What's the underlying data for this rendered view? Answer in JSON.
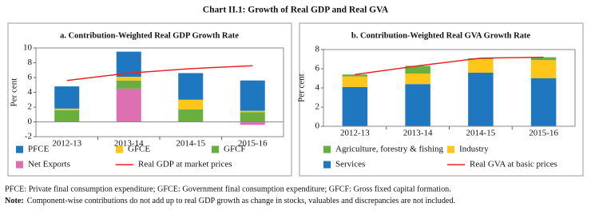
{
  "title": "Chart II.1: Growth of Real GDP and Real GVA",
  "chart_data": [
    {
      "type": "bar",
      "stacked": true,
      "title": "a. Contribution-Weighted Real GDP Growth Rate",
      "y_label": "Per cent",
      "categories": [
        "2012-13",
        "2013-14",
        "2014-15",
        "2015-16"
      ],
      "ylim": [
        -2,
        10
      ],
      "yticks": [
        -2,
        0,
        2,
        4,
        6,
        8,
        10
      ],
      "series": [
        {
          "name": "PFCE",
          "color": "#1f77c0",
          "values": [
            3.0,
            3.4,
            3.6,
            4.1
          ]
        },
        {
          "name": "GFCE",
          "color": "#ffc61a",
          "values": [
            0.2,
            0.5,
            1.3,
            0.2
          ]
        },
        {
          "name": "GFCF",
          "color": "#6aae3e",
          "values": [
            1.6,
            1.1,
            1.7,
            1.3
          ]
        },
        {
          "name": "Net Exports",
          "color": "#dd6fb3",
          "values": [
            0,
            4.5,
            0,
            -0.4
          ]
        },
        {
          "name": "Real GDP at market prices",
          "color": "#e8262a",
          "type": "line",
          "values": [
            5.6,
            6.6,
            7.2,
            7.6
          ]
        }
      ]
    },
    {
      "type": "bar",
      "stacked": true,
      "title": "b. Contribution-Weighted Real GVA Growth Rate",
      "y_label": "Per cent",
      "categories": [
        "2012-13",
        "2013-14",
        "2014-15",
        "2015-16"
      ],
      "ylim": [
        0,
        8
      ],
      "yticks": [
        0,
        2,
        4,
        6,
        8
      ],
      "series": [
        {
          "name": "Agriculture, forestry & fishing",
          "color": "#6aae3e",
          "values": [
            0.2,
            0.8,
            0.1,
            0.3
          ]
        },
        {
          "name": "Industry",
          "color": "#ffc61a",
          "values": [
            1.1,
            1.1,
            1.4,
            1.9
          ]
        },
        {
          "name": "Services",
          "color": "#1f77c0",
          "values": [
            4.1,
            4.4,
            5.6,
            5.0
          ]
        },
        {
          "name": "Real GVA at basic prices",
          "color": "#e8262a",
          "type": "line",
          "values": [
            5.4,
            6.3,
            7.1,
            7.2
          ]
        }
      ]
    }
  ],
  "notes": [
    {
      "text": "PFCE: Private final consumption expenditure; GFCE: Government final consumption expenditure; GFCF: Gross fixed capital formation."
    },
    {
      "label": "Note:",
      "text": "Component-wise contributions do not add up to real GDP growth as change in stocks, valuables and discrepancies are not included."
    }
  ]
}
